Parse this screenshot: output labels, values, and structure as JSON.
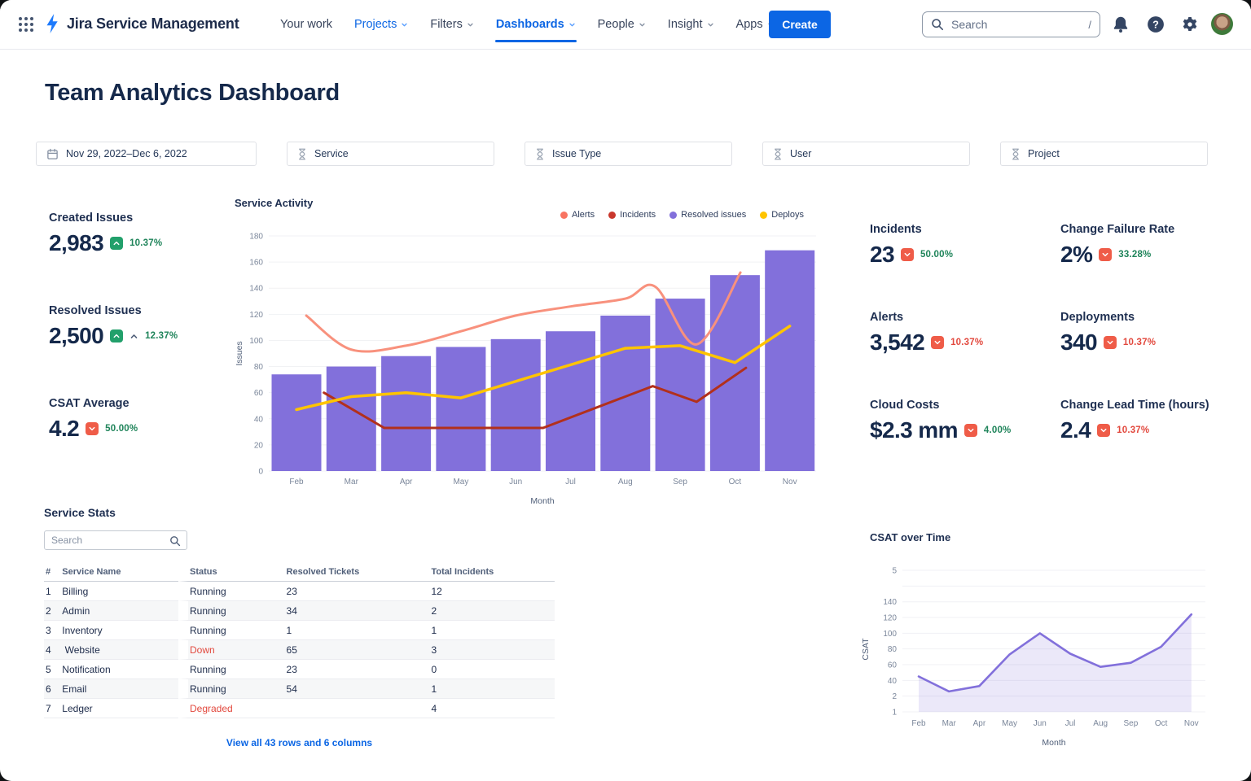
{
  "nav": {
    "app_name": "Jira Service Management",
    "items": [
      {
        "label": "Your work",
        "dropdown": false,
        "highlight": false,
        "active": false
      },
      {
        "label": "Projects",
        "dropdown": true,
        "highlight": true,
        "active": false
      },
      {
        "label": "Filters",
        "dropdown": true,
        "highlight": false,
        "active": false
      },
      {
        "label": "Dashboards",
        "dropdown": true,
        "highlight": true,
        "active": true
      },
      {
        "label": "People",
        "dropdown": true,
        "highlight": false,
        "active": false
      },
      {
        "label": "Insight",
        "dropdown": true,
        "highlight": false,
        "active": false
      },
      {
        "label": "Apps",
        "dropdown": true,
        "highlight": false,
        "active": false
      }
    ],
    "create_label": "Create",
    "search_placeholder": "Search",
    "search_shortcut": "/"
  },
  "page": {
    "title": "Team Analytics Dashboard"
  },
  "filters": [
    {
      "label": "Nov 29, 2022–Dec 6, 2022",
      "icon": "calendar-icon"
    },
    {
      "label": "Service",
      "icon": "filter-icon"
    },
    {
      "label": "Issue Type",
      "icon": "filter-icon"
    },
    {
      "label": "User",
      "icon": "filter-icon"
    },
    {
      "label": "Project",
      "icon": "filter-icon"
    }
  ],
  "kpis_left": [
    {
      "label": "Created Issues",
      "value": "2,983",
      "badge": "up",
      "delta": "10.37%",
      "delta_color": "green",
      "extra_chevron": false
    },
    {
      "label": "Resolved Issues",
      "value": "2,500",
      "badge": "up",
      "delta": "12.37%",
      "delta_color": "green",
      "extra_chevron": true
    },
    {
      "label": "CSAT Average",
      "value": "4.2",
      "badge": "down",
      "delta": "50.00%",
      "delta_color": "green",
      "extra_chevron": false
    }
  ],
  "kpis_right": [
    {
      "label": "Incidents",
      "value": "23",
      "badge": "down",
      "delta": "50.00%",
      "delta_color": "green",
      "extra_chevron": false
    },
    {
      "label": "Change Failure Rate",
      "value": "2%",
      "badge": "down",
      "delta": "33.28%",
      "delta_color": "green",
      "extra_chevron": false
    },
    {
      "label": "Alerts",
      "value": "3,542",
      "badge": "down",
      "delta": "10.37%",
      "delta_color": "red",
      "extra_chevron": false
    },
    {
      "label": "Deployments",
      "value": "340",
      "badge": "down",
      "delta": "10.37%",
      "delta_color": "red",
      "extra_chevron": false
    },
    {
      "label": "Cloud Costs",
      "value": "$2.3 mm",
      "badge": "down",
      "delta": "4.00%",
      "delta_color": "green",
      "extra_chevron": false
    },
    {
      "label": "Change Lead Time (hours)",
      "value": "2.4",
      "badge": "down",
      "delta": "10.37%",
      "delta_color": "red",
      "extra_chevron": false
    }
  ],
  "service_stats": {
    "title": "Service Stats",
    "search_placeholder": "Search",
    "columns": [
      "#",
      "Service Name",
      "Status",
      "Resolved Tickets",
      "Total Incidents"
    ],
    "rows": [
      [
        "1",
        "Billing",
        "Running",
        "23",
        "12"
      ],
      [
        "2",
        "Admin",
        "Running",
        "34",
        "2"
      ],
      [
        "3",
        "Inventory",
        "Running",
        "1",
        "1"
      ],
      [
        "4",
        " Website",
        "Down",
        "65",
        "3"
      ],
      [
        "5",
        "Notification",
        "Running",
        "23",
        "0"
      ],
      [
        "6",
        "Email",
        "Running",
        "54",
        "1"
      ],
      [
        "7",
        "Ledger",
        "Degraded",
        "",
        "4"
      ]
    ],
    "alert_statuses": [
      "Down",
      "Degraded"
    ],
    "footer_link": "View all 43 rows and 6 columns"
  },
  "chart_data": [
    {
      "type": "bar+line",
      "title": "Service Activity",
      "xlabel": "Month",
      "ylabel": "Issues",
      "categories": [
        "Feb",
        "Mar",
        "Apr",
        "May",
        "Jun",
        "Jul",
        "Aug",
        "Sep",
        "Oct",
        "Nov"
      ],
      "ylim": [
        0,
        180
      ],
      "ytick_step": 20,
      "grid": true,
      "legend_position": "top-right",
      "legend": [
        {
          "label": "Alerts",
          "color": "#F87462"
        },
        {
          "label": "Incidents",
          "color": "#C9372C"
        },
        {
          "label": "Resolved issues",
          "color": "#8270DB"
        },
        {
          "label": "Deploys",
          "color": "#FFC400"
        }
      ],
      "bars": {
        "name": "Resolved issues",
        "color": "#8270DB",
        "values": [
          74,
          80,
          88,
          95,
          101,
          107,
          119,
          132,
          150,
          169
        ]
      },
      "lines": [
        {
          "name": "Alerts",
          "color": "#F8917D",
          "width": 3,
          "smooth": true,
          "points": [
            [
              0.18,
              119
            ],
            [
              1,
              93
            ],
            [
              2,
              96
            ],
            [
              3,
              107
            ],
            [
              4,
              119
            ],
            [
              5,
              126
            ],
            [
              6,
              132
            ],
            [
              6.55,
              141
            ],
            [
              7.3,
              97
            ],
            [
              8.1,
              152
            ]
          ]
        },
        {
          "name": "Incidents",
          "color": "#B2301C",
          "width": 3,
          "smooth": false,
          "points": [
            [
              0.5,
              60
            ],
            [
              1.6,
              33
            ],
            [
              4.5,
              33
            ],
            [
              6.5,
              65
            ],
            [
              7.3,
              53
            ],
            [
              8.2,
              79
            ]
          ]
        },
        {
          "name": "Deploys",
          "color": "#FFC400",
          "width": 3.5,
          "smooth": false,
          "points": [
            [
              0,
              47
            ],
            [
              1,
              57
            ],
            [
              2,
              60
            ],
            [
              3,
              56
            ],
            [
              6,
              94
            ],
            [
              7,
              96
            ],
            [
              8,
              83
            ],
            [
              9,
              111
            ]
          ]
        }
      ]
    },
    {
      "type": "area",
      "title": "CSAT over Time",
      "xlabel": "Month",
      "ylabel": "CSAT",
      "categories": [
        "Feb",
        "Mar",
        "Apr",
        "May",
        "Jun",
        "Jul",
        "Aug",
        "Sep",
        "Oct",
        "Nov"
      ],
      "ytick_labels_bottom_to_top": [
        "1",
        "2",
        "40",
        "60",
        "80",
        "100",
        "120",
        "140",
        "",
        "5"
      ],
      "approx_values": [
        45,
        27,
        33,
        73,
        100,
        80,
        57,
        62,
        84,
        125
      ],
      "grid_units": [
        2.25,
        1.3,
        1.64,
        3.65,
        5.0,
        3.7,
        2.86,
        3.12,
        4.14,
        6.2
      ],
      "line_color": "#8270DB",
      "fill_color": "rgba(130,112,219,0.16)",
      "grid": true
    }
  ]
}
